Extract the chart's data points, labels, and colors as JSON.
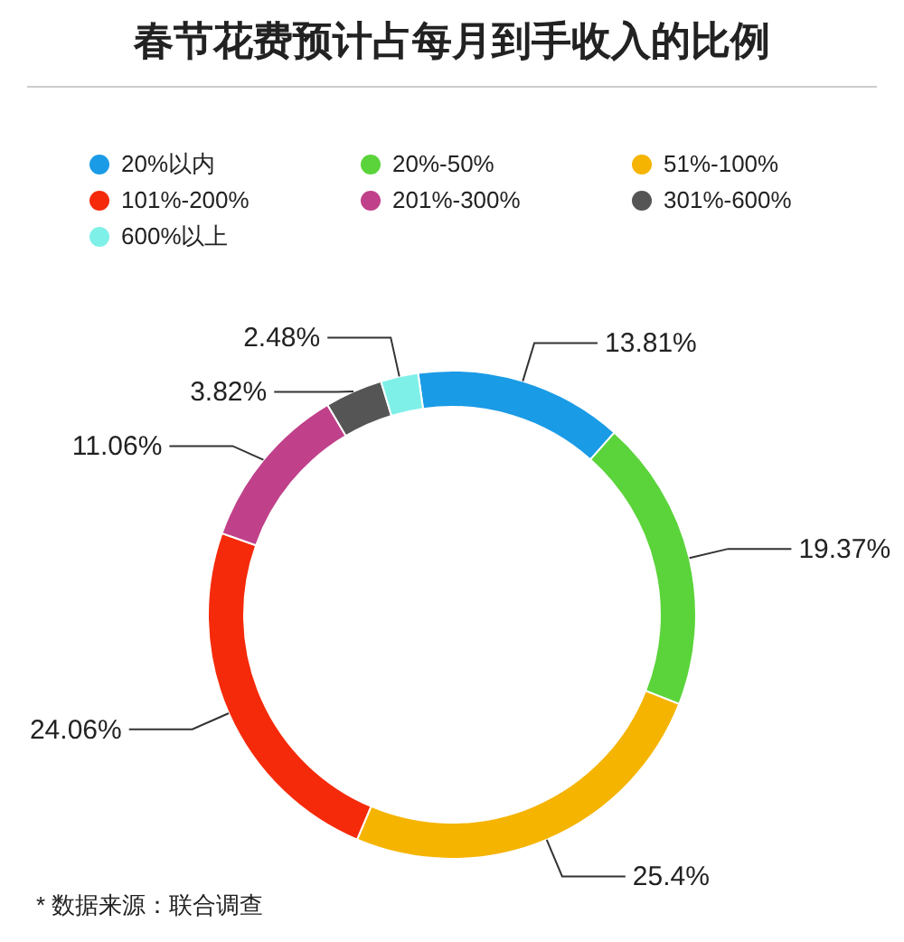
{
  "chart_data": {
    "type": "donut",
    "title": "春节花费预计占每月到手收入的比例",
    "categories": [
      "20%以内",
      "20%-50%",
      "51%-100%",
      "101%-200%",
      "201%-300%",
      "301%-600%",
      "600%以上"
    ],
    "values": [
      13.81,
      19.37,
      25.4,
      24.06,
      11.06,
      3.82,
      2.48
    ],
    "colors": [
      "#1a9be6",
      "#5ad43a",
      "#f5b400",
      "#f52a0a",
      "#c0408a",
      "#555555",
      "#7ff0e8"
    ],
    "value_labels": [
      "13.81%",
      "19.37%",
      "25.4%",
      "24.06%",
      "11.06%",
      "3.82%",
      "2.48%"
    ],
    "legend": "top",
    "annotations": [
      "* 数据来源：联合调查"
    ]
  }
}
